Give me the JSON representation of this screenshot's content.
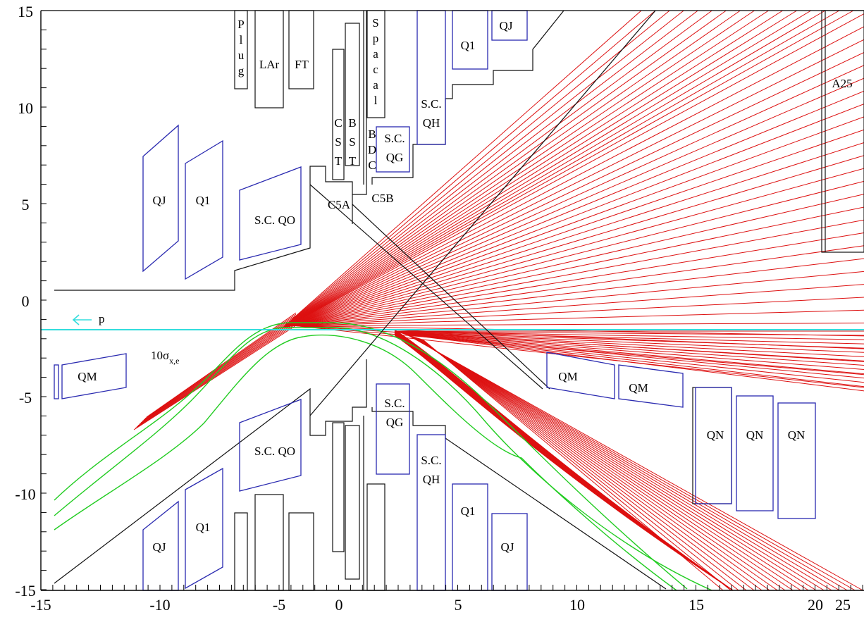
{
  "axes": {
    "x_ticks": [
      "-15",
      "-10",
      "-5",
      "0",
      "5",
      "10",
      "15",
      "20",
      "25"
    ],
    "y_ticks": [
      "15",
      "10",
      "5",
      "0",
      "-5",
      "-10",
      "-15"
    ]
  },
  "labels": {
    "plug": [
      "P",
      "l",
      "u",
      "g"
    ],
    "lar": "LAr",
    "ft": "FT",
    "cst": [
      "C",
      "S",
      "T"
    ],
    "bst": [
      "B",
      "S",
      "T"
    ],
    "spacal": [
      "S",
      "p",
      "a",
      "c",
      "a",
      "l"
    ],
    "bdc": [
      "B",
      "D",
      "C"
    ],
    "sc_qg_top": [
      "S.C.",
      "QG"
    ],
    "sc_qh_top": [
      "S.C.",
      "QH"
    ],
    "q1_top_right": "Q1",
    "qj_top_right": "QJ",
    "a25": "A25",
    "qj_left": "QJ",
    "q1_left": "Q1",
    "sc_qo_top": "S.C. QO",
    "c5a": "C5A",
    "c5b": "C5B",
    "p_label": "p",
    "sigma_main": "10σ",
    "sigma_sub": "x,e",
    "qm_left": "QM",
    "qm_right1": "QM",
    "qm_right2": "QM",
    "qn1": "QN",
    "qn2": "QN",
    "qn3": "QN",
    "sc_qg_bot": [
      "S.C.",
      "QG"
    ],
    "sc_qo_bot": "S.C. QO",
    "sc_qh_bot": [
      "S.C.",
      "QH"
    ],
    "q1_bot_left": "Q1",
    "qj_bot_left": "QJ",
    "q1_bot_right": "Q1",
    "qj_bot_right": "QJ"
  },
  "colors": {
    "magnet": "#2a2ab0",
    "structure": "#111111",
    "synchrotron_fan": "#dd1010",
    "envelope": "#22cc22",
    "proton_beam": "#33dddd"
  }
}
